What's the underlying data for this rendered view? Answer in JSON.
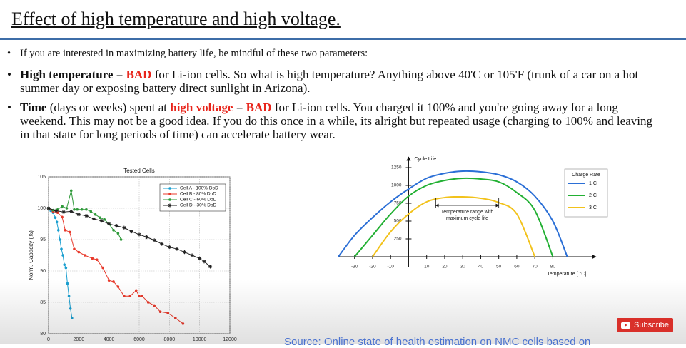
{
  "title": "Effect of high temperature and high voltage.",
  "bullets": [
    [
      {
        "text": "If you are interested in maximizing battery life, be mindful of these two parameters:"
      }
    ],
    [
      {
        "text": "High temperature",
        "bold": true
      },
      {
        "text": " = "
      },
      {
        "text": "BAD",
        "bold": true,
        "color": "#e8251b"
      },
      {
        "text": " for Li-ion cells. So what is high temperature? Anything above 40'C or 105'F (trunk of a car on a hot summer day or exposing battery direct sunlight in Arizona)."
      }
    ],
    [
      {
        "text": "Time",
        "bold": true
      },
      {
        "text": " (days or weeks) spent at "
      },
      {
        "text": "high voltage",
        "bold": true,
        "color": "#e8251b"
      },
      {
        "text": " = "
      },
      {
        "text": "BAD",
        "bold": true,
        "color": "#e8251b"
      },
      {
        "text": " for Li-ion cells. You charged it 100% and you're going away for a long weekend. This may not be a good idea. If you do this once in a while, its alright but repeated usage (charging to 100% and leaving in that state for long periods of time) can accelerate battery wear."
      }
    ]
  ],
  "chart_data": [
    {
      "type": "line",
      "title": "Tested Cells",
      "ylabel": "Norm. Capacity (%)",
      "frame": "box",
      "markers": true,
      "smooth": false,
      "grid": true,
      "legend": "upper right",
      "xlim": [
        0,
        12000
      ],
      "xticks": [
        0,
        2000,
        4000,
        6000,
        8000,
        10000,
        12000
      ],
      "ylim": [
        80,
        105
      ],
      "yticks": [
        80,
        85,
        90,
        95,
        100,
        105
      ],
      "series": [
        {
          "name": "Cell A - 100% DoD",
          "color": "#1a9fd0",
          "marker": "o",
          "x": [
            0,
            150,
            300,
            450,
            550,
            650,
            750,
            850,
            950,
            1050,
            1150,
            1250,
            1350,
            1450,
            1550
          ],
          "values": [
            100,
            99.6,
            99.3,
            98.5,
            97.8,
            96.5,
            95,
            93.5,
            92.5,
            91,
            90.5,
            88,
            86,
            84,
            82.5
          ]
        },
        {
          "name": "Cell B - 80% DoD",
          "color": "#e8392b",
          "marker": "o",
          "x": [
            0,
            300,
            600,
            900,
            1100,
            1400,
            1700,
            2000,
            2400,
            2900,
            3200,
            3600,
            4000,
            4300,
            4600,
            5000,
            5400,
            5800,
            6000,
            6200,
            6600,
            7000,
            7400,
            7900,
            8400,
            8900
          ],
          "values": [
            100,
            99.5,
            99.3,
            98.6,
            96.5,
            96.2,
            93.5,
            93,
            92.5,
            92,
            91.8,
            90.5,
            88.5,
            88.3,
            87.5,
            86,
            86,
            86.9,
            86,
            86,
            85,
            84.5,
            83.5,
            83.3,
            82.5,
            81.6
          ]
        },
        {
          "name": "Cell C - 60% DoD",
          "color": "#2f9a3a",
          "marker": "o",
          "x": [
            0,
            300,
            600,
            900,
            1200,
            1500,
            1700,
            1900,
            2200,
            2500,
            2800,
            3100,
            3400,
            3700,
            4000,
            4300,
            4600,
            4800
          ],
          "values": [
            100,
            99.7,
            99.8,
            100.3,
            100,
            102.8,
            99.8,
            99.8,
            99.8,
            99.8,
            99.5,
            99,
            98.5,
            98.2,
            97.5,
            96.5,
            96,
            95
          ]
        },
        {
          "name": "Cell D - 30% DoD",
          "color": "#222222",
          "marker": "*",
          "x": [
            0,
            500,
            1000,
            1500,
            2000,
            2500,
            3000,
            3500,
            4000,
            4500,
            5000,
            5500,
            6000,
            6500,
            7000,
            7500,
            8000,
            8500,
            9000,
            9500,
            10000,
            10300,
            10700
          ],
          "values": [
            100,
            99.6,
            99.4,
            99.5,
            99,
            98.8,
            98.3,
            98,
            97.5,
            97.2,
            96.9,
            96.3,
            95.8,
            95.4,
            94.9,
            94.3,
            93.8,
            93.5,
            93,
            92.5,
            92,
            91.5,
            90.7
          ]
        }
      ]
    },
    {
      "type": "line",
      "ylabel": "Cycle Life",
      "xlabel": "Temperature [ °C]",
      "frame": "cross",
      "markers": false,
      "smooth": true,
      "grid": false,
      "legend": "upper right",
      "legend_title": "Charge Rate",
      "xlim": [
        -39,
        104
      ],
      "xticks": [
        -30,
        -20,
        -10,
        10,
        20,
        30,
        40,
        50,
        60,
        70,
        80
      ],
      "ylim": [
        -150,
        1400
      ],
      "yticks": [
        250,
        500,
        750,
        1000,
        1250
      ],
      "x": [
        -39,
        -30,
        -20,
        -10,
        0,
        10,
        20,
        30,
        40,
        50,
        60,
        70,
        80,
        88
      ],
      "series": [
        {
          "name": "1 C",
          "color": "#2b6fd6",
          "values": [
            0,
            300,
            550,
            770,
            950,
            1100,
            1170,
            1200,
            1190,
            1150,
            1050,
            850,
            500,
            0
          ]
        },
        {
          "name": "2 C",
          "color": "#22b033",
          "values": [
            null,
            0,
            300,
            600,
            850,
            1000,
            1070,
            1100,
            1090,
            1050,
            900,
            650,
            0,
            null
          ]
        },
        {
          "name": "3 C",
          "color": "#f2c21b",
          "values": [
            null,
            null,
            0,
            350,
            600,
            770,
            830,
            840,
            820,
            760,
            600,
            0,
            null,
            null
          ]
        }
      ],
      "annotation": {
        "text": [
          "Temperature range with",
          "maximum cycle life"
        ],
        "range": [
          15,
          50
        ],
        "y": 720
      }
    }
  ],
  "source": "Source: Online state of health estimation on NMC cells based on",
  "subscribe": "Subscribe"
}
